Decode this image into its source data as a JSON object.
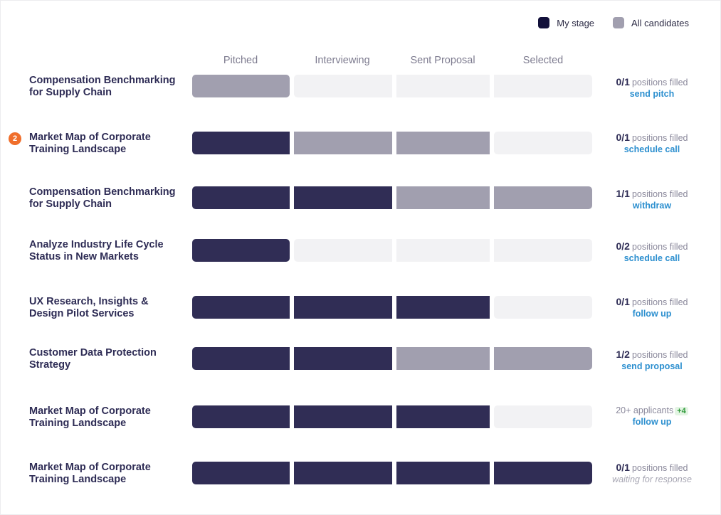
{
  "legend": {
    "my_stage": {
      "label": "My stage",
      "color": "#12103a"
    },
    "all_candidates": {
      "label": "All candidates",
      "color": "#a19faf"
    }
  },
  "columns": [
    "Pitched",
    "Interviewing",
    "Sent Proposal",
    "Selected"
  ],
  "colors": {
    "mine": "#302d55",
    "all": "#a19faf",
    "empty": "#f2f2f4",
    "link": "#2c8fcf",
    "badge": "#f06e2b"
  },
  "rows": [
    {
      "title_lines": [
        "Compensation Benchmarking",
        "for Supply Chain"
      ],
      "stages": [
        "all",
        "empty",
        "empty",
        "empty"
      ],
      "filled": "0/1",
      "filled_suffix": "positions filled",
      "action": "send pitch"
    },
    {
      "badge": "2",
      "title_lines": [
        "Market Map of Corporate",
        "Training Landscape"
      ],
      "stages": [
        "mine",
        "all",
        "all",
        "empty"
      ],
      "filled": "0/1",
      "filled_suffix": "positions filled",
      "action": "schedule call"
    },
    {
      "title_lines": [
        "Compensation Benchmarking",
        "for Supply Chain"
      ],
      "stages": [
        "mine",
        "mine",
        "all",
        "all"
      ],
      "filled": "1/1",
      "filled_suffix": "positions filled",
      "action": "withdraw"
    },
    {
      "title_lines": [
        "Analyze Industry Life Cycle",
        "Status in New Markets"
      ],
      "stages": [
        "mine",
        "empty",
        "empty",
        "empty"
      ],
      "filled": "0/2",
      "filled_suffix": "positions filled",
      "action": "schedule call"
    },
    {
      "title_lines": [
        "UX Research, Insights &",
        "Design Pilot Services"
      ],
      "stages": [
        "mine",
        "mine",
        "mine",
        "empty"
      ],
      "filled": "0/1",
      "filled_suffix": "positions filled",
      "action": "follow up"
    },
    {
      "title_lines": [
        "Customer Data Protection",
        "Strategy"
      ],
      "stages": [
        "mine",
        "mine",
        "all",
        "all"
      ],
      "filled": "1/2",
      "filled_suffix": "positions filled",
      "action": "send proposal"
    },
    {
      "title_lines": [
        "Market Map of Corporate",
        "Training Landscape"
      ],
      "stages": [
        "mine",
        "mine",
        "mine",
        "empty"
      ],
      "applicants": "20+ applicants",
      "applicants_delta": "+4",
      "action": "follow up"
    },
    {
      "title_lines": [
        "Market Map of Corporate",
        "Training Landscape"
      ],
      "stages": [
        "mine",
        "mine",
        "mine",
        "mine"
      ],
      "filled": "0/1",
      "filled_suffix": "positions filled",
      "action": "waiting for response",
      "action_muted": true
    }
  ]
}
